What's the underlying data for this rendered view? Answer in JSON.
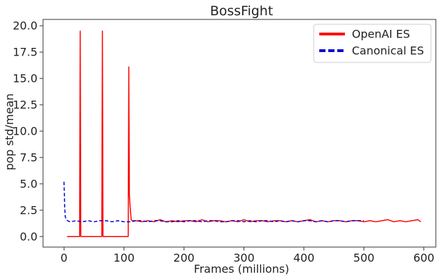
{
  "chart_data": {
    "type": "line",
    "title": "BossFight",
    "xlabel": "Frames (millions)",
    "ylabel": "pop std/mean",
    "xlim": [
      -35,
      620
    ],
    "ylim": [
      -1.0,
      20.6
    ],
    "xticks": [
      0,
      100,
      200,
      300,
      400,
      500,
      600
    ],
    "xtick_labels": [
      "0",
      "100",
      "200",
      "300",
      "400",
      "500",
      "600"
    ],
    "yticks": [
      0.0,
      2.5,
      5.0,
      7.5,
      10.0,
      12.5,
      15.0,
      17.5,
      20.0
    ],
    "ytick_labels": [
      "0.0",
      "2.5",
      "5.0",
      "7.5",
      "10.0",
      "12.5",
      "15.0",
      "17.5",
      "20.0"
    ],
    "grid": false,
    "legend_position": "top-right",
    "series": [
      {
        "name": "OpenAI ES",
        "color": "#ff0000",
        "style": "solid",
        "x": [
          5,
          26,
          27,
          28,
          29,
          63,
          64,
          65,
          66,
          107,
          108,
          109,
          110,
          112,
          114,
          120,
          130,
          140,
          150,
          160,
          170,
          180,
          190,
          200,
          210,
          220,
          230,
          240,
          250,
          260,
          270,
          280,
          290,
          300,
          310,
          320,
          330,
          340,
          350,
          360,
          370,
          380,
          390,
          400,
          410,
          420,
          430,
          440,
          450,
          460,
          470,
          480,
          490,
          500,
          510,
          520,
          530,
          540,
          550,
          560,
          570,
          580,
          590,
          595
        ],
        "y": [
          0.0,
          0.0,
          19.5,
          0.0,
          0.0,
          0.0,
          19.5,
          0.0,
          0.0,
          0.0,
          16.1,
          4.0,
          3.0,
          1.6,
          1.5,
          1.5,
          1.4,
          1.5,
          1.4,
          1.6,
          1.4,
          1.5,
          1.4,
          1.5,
          1.5,
          1.4,
          1.6,
          1.4,
          1.5,
          1.5,
          1.4,
          1.5,
          1.4,
          1.6,
          1.4,
          1.5,
          1.5,
          1.4,
          1.5,
          1.5,
          1.4,
          1.5,
          1.4,
          1.5,
          1.6,
          1.4,
          1.5,
          1.4,
          1.5,
          1.5,
          1.4,
          1.5,
          1.5,
          1.4,
          1.5,
          1.4,
          1.5,
          1.6,
          1.4,
          1.5,
          1.4,
          1.5,
          1.6,
          1.4
        ]
      },
      {
        "name": "Canonical ES",
        "color": "#0000cc",
        "style": "dashed",
        "x": [
          0,
          1,
          2,
          4,
          6,
          10,
          20,
          30,
          40,
          50,
          60,
          70,
          80,
          90,
          100,
          110,
          120,
          130,
          140,
          150,
          160,
          170,
          180,
          190,
          200,
          210,
          220,
          230,
          240,
          250,
          260,
          270,
          280,
          290,
          300,
          310,
          320,
          330,
          340,
          350,
          360,
          370,
          380,
          390,
          400,
          410,
          420,
          430,
          440,
          450,
          460,
          470,
          480,
          490,
          500
        ],
        "y": [
          5.2,
          3.0,
          1.9,
          1.6,
          1.5,
          1.4,
          1.5,
          1.4,
          1.5,
          1.4,
          1.5,
          1.5,
          1.4,
          1.5,
          1.4,
          1.4,
          1.5,
          1.5,
          1.4,
          1.5,
          1.5,
          1.4,
          1.4,
          1.5,
          1.4,
          1.5,
          1.5,
          1.4,
          1.5,
          1.5,
          1.4,
          1.4,
          1.5,
          1.5,
          1.4,
          1.5,
          1.4,
          1.5,
          1.5,
          1.4,
          1.5,
          1.4,
          1.5,
          1.4,
          1.5,
          1.5,
          1.4,
          1.5,
          1.4,
          1.5,
          1.5,
          1.4,
          1.5,
          1.5,
          1.5
        ]
      }
    ]
  }
}
